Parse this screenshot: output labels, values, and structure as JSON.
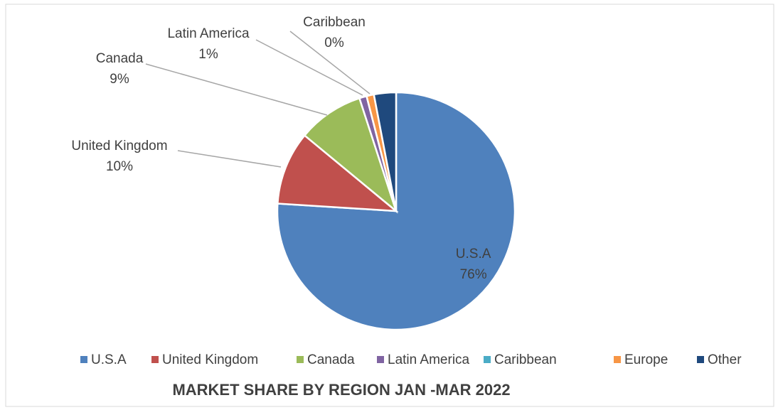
{
  "chart_data": {
    "type": "pie",
    "title": "MARKET SHARE BY REGION JAN -MAR 2022",
    "categories": [
      "U.S.A",
      "United Kingdom",
      "Canada",
      "Latin America",
      "Caribbean",
      "Europe",
      "Other"
    ],
    "values": [
      76,
      10,
      9,
      1,
      0,
      1,
      3
    ],
    "value_labels": [
      "76%",
      "10%",
      "9%",
      "1%",
      "0%",
      null,
      null
    ],
    "colors": [
      "#4f81bd",
      "#c0504d",
      "#9bbb59",
      "#8064a2",
      "#4bacc6",
      "#f79646",
      "#1f497d"
    ],
    "legend": "bottom"
  }
}
